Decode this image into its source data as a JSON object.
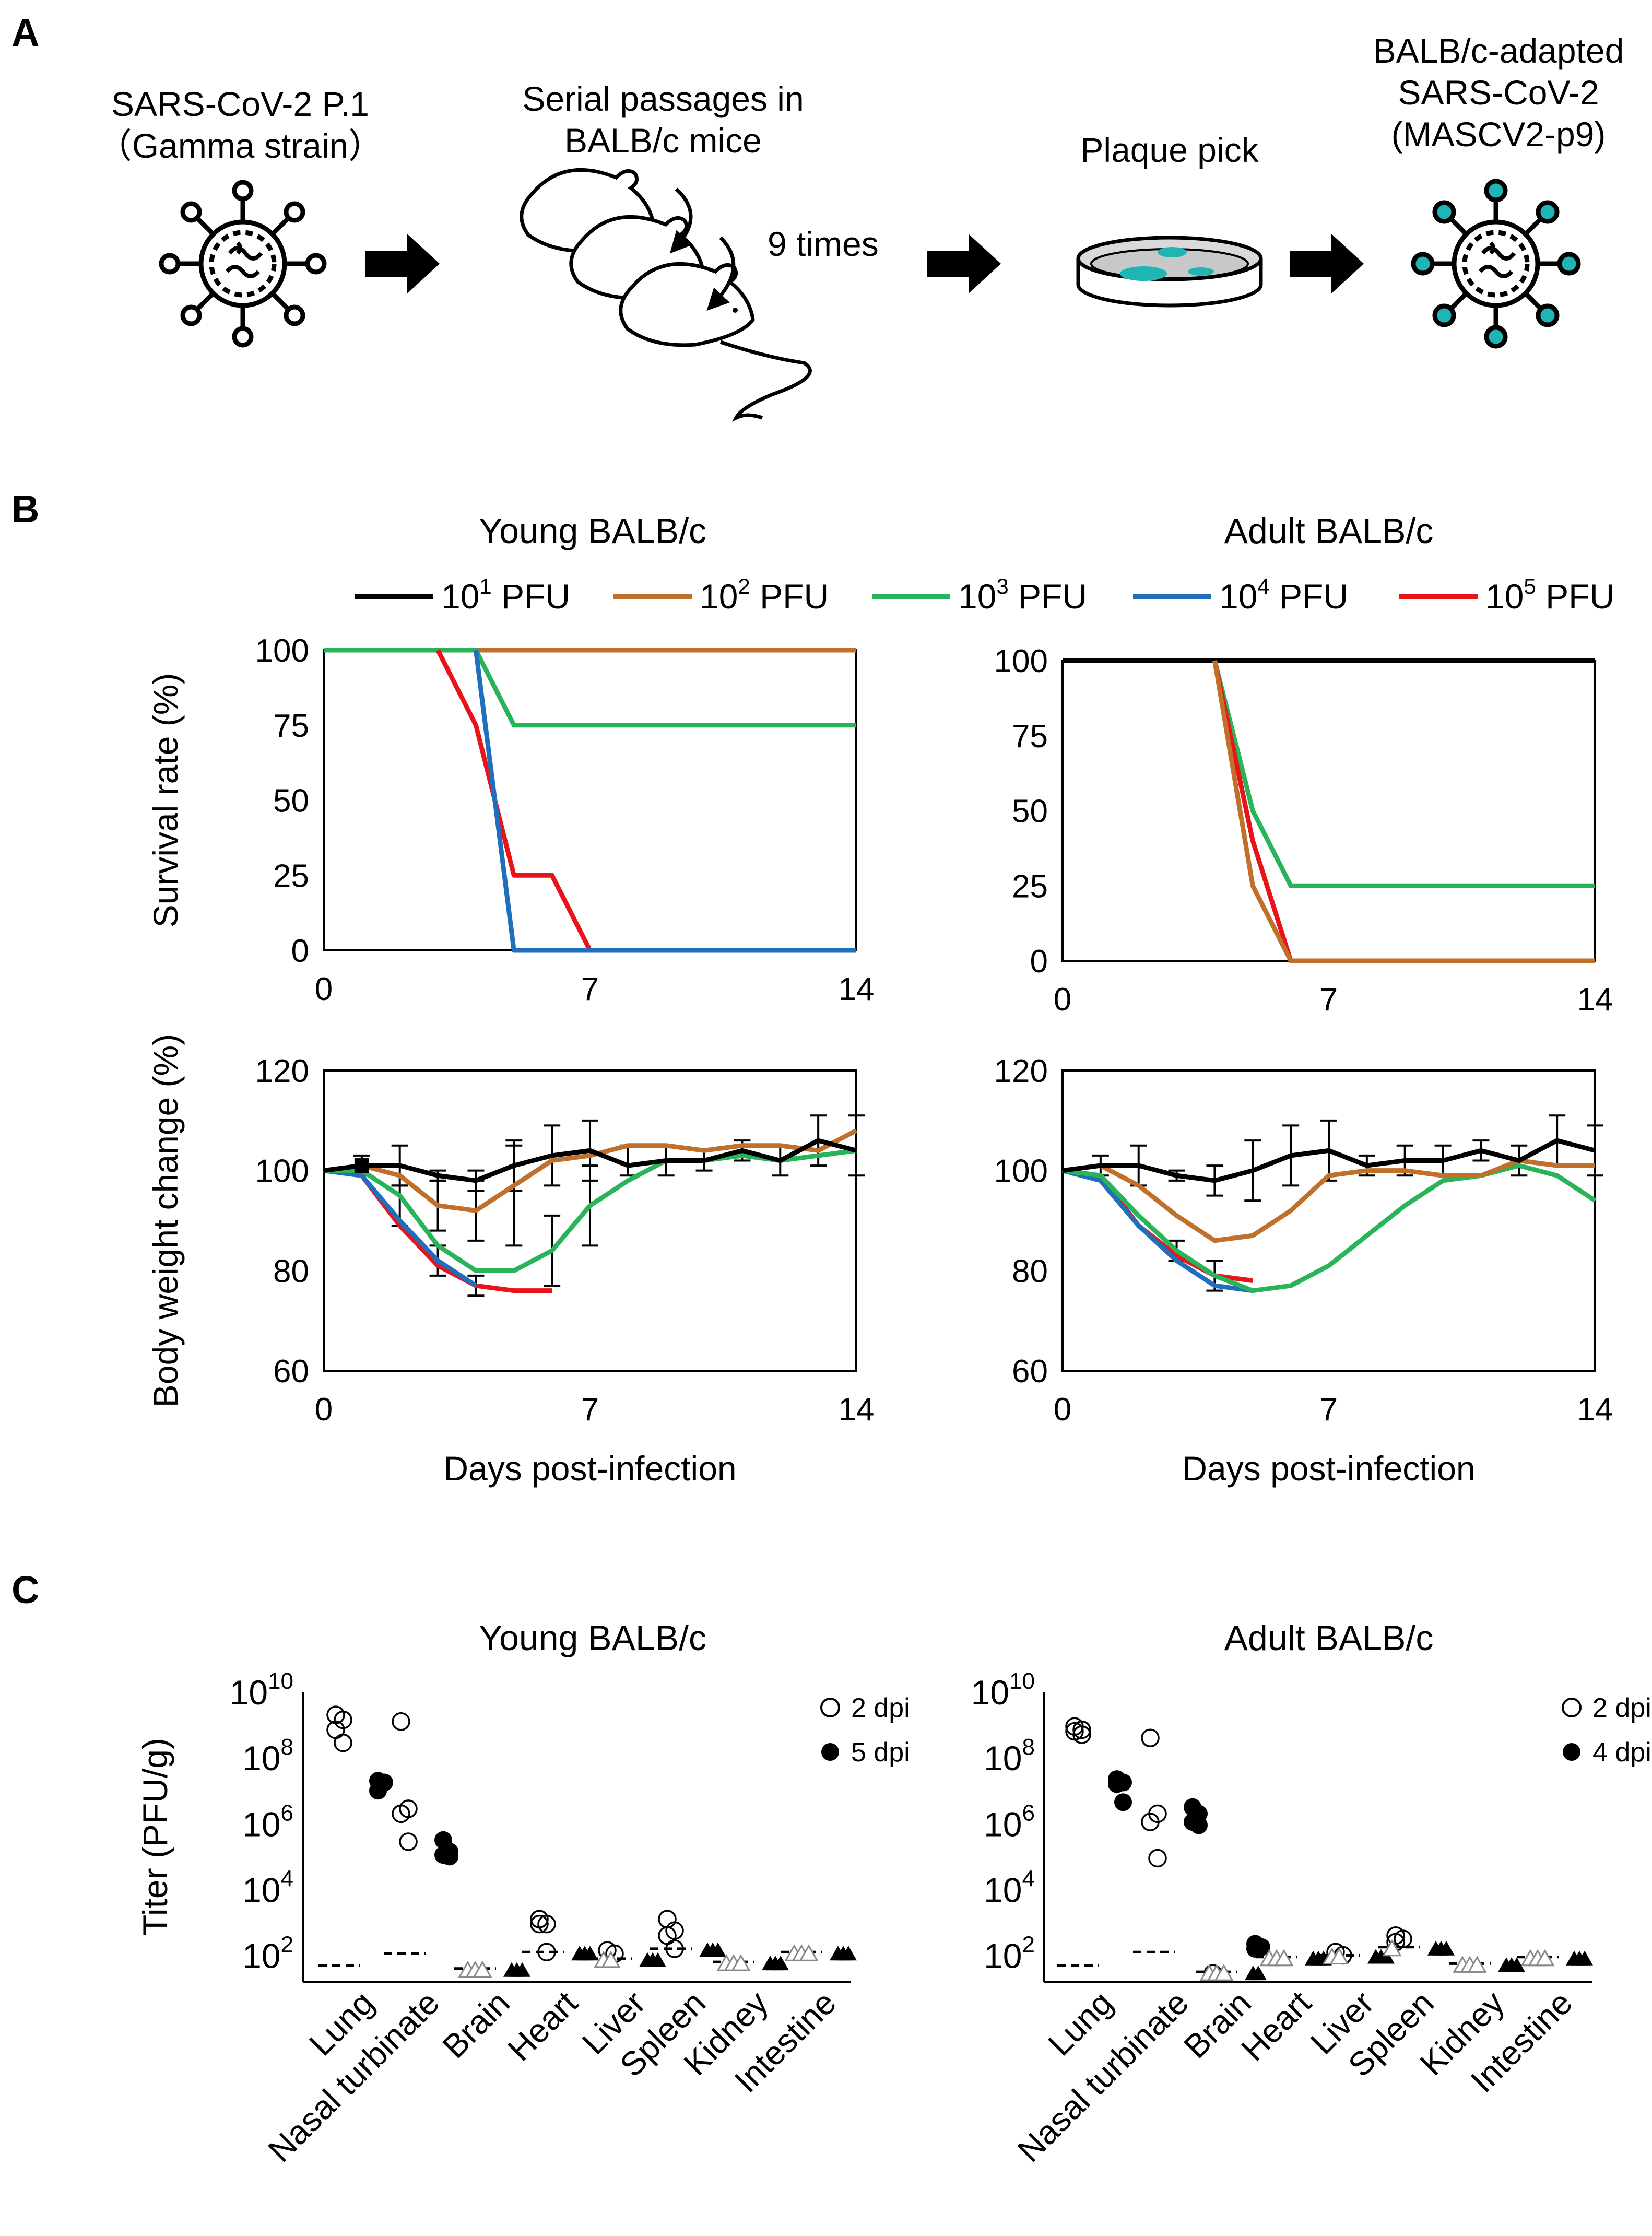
{
  "panels": {
    "a": "A",
    "b": "B",
    "c": "C"
  },
  "panel_a": {
    "virus_label_1": "SARS-CoV-2 P.1",
    "virus_label_2": "（Gamma strain）",
    "passage_label_1": "Serial passages in",
    "passage_label_2": "BALB/c mice",
    "times_label": "9 times",
    "plaque_label": "Plaque pick",
    "adapted_label_1": "BALB/c-adapted",
    "adapted_label_2": "SARS-CoV-2",
    "adapted_label_3": "(MASCV2-p9)",
    "colors": {
      "virus_outline": "#000000",
      "adapted_virus": "#1fb5b5",
      "arrow": "#000000"
    }
  },
  "legend": {
    "items": [
      {
        "base": "10",
        "exp": "1",
        "unit": " PFU",
        "color": "#000000"
      },
      {
        "base": "10",
        "exp": "2",
        "unit": " PFU",
        "color": "#c0702a"
      },
      {
        "base": "10",
        "exp": "3",
        "unit": " PFU",
        "color": "#2ab45a"
      },
      {
        "base": "10",
        "exp": "4",
        "unit": " PFU",
        "color": "#1f6fbd"
      },
      {
        "base": "10",
        "exp": "5",
        "unit": " PFU",
        "color": "#e8141a"
      }
    ]
  },
  "chart_data": [
    {
      "id": "survival-young",
      "type": "line",
      "title": "Young BALB/c",
      "xlabel": "",
      "ylabel": "Survival rate (%)",
      "xlim": [
        0,
        14
      ],
      "ylim": [
        0,
        100
      ],
      "xticks": [
        0,
        7,
        14
      ],
      "yticks": [
        0,
        25,
        50,
        75,
        100
      ],
      "series": [
        {
          "name": "10^1 PFU",
          "color": "#000000",
          "x": [
            0,
            14
          ],
          "y": [
            100,
            100
          ]
        },
        {
          "name": "10^2 PFU",
          "color": "#c0702a",
          "x": [
            0,
            14
          ],
          "y": [
            100,
            100
          ]
        },
        {
          "name": "10^3 PFU",
          "color": "#2ab45a",
          "x": [
            0,
            4,
            5,
            14
          ],
          "y": [
            100,
            100,
            75,
            75
          ]
        },
        {
          "name": "10^5 PFU",
          "color": "#e8141a",
          "x": [
            3,
            4,
            5,
            6,
            7,
            14
          ],
          "y": [
            100,
            75,
            25,
            25,
            0,
            0
          ]
        },
        {
          "name": "10^4 PFU",
          "color": "#1f6fbd",
          "x": [
            4,
            5,
            14
          ],
          "y": [
            100,
            0,
            0
          ]
        }
      ]
    },
    {
      "id": "survival-adult",
      "type": "line",
      "title": "Adult BALB/c",
      "xlabel": "",
      "ylabel": "",
      "xlim": [
        0,
        14
      ],
      "ylim": [
        0,
        100
      ],
      "xticks": [
        0,
        7,
        14
      ],
      "yticks": [
        0,
        25,
        50,
        75,
        100
      ],
      "series": [
        {
          "name": "10^1 PFU",
          "color": "#000000",
          "x": [
            0,
            14
          ],
          "y": [
            100,
            100
          ]
        },
        {
          "name": "10^3 PFU",
          "color": "#2ab45a",
          "x": [
            4,
            5,
            6,
            14
          ],
          "y": [
            100,
            50,
            25,
            25
          ]
        },
        {
          "name": "10^5 PFU",
          "color": "#e8141a",
          "x": [
            4,
            5,
            6
          ],
          "y": [
            100,
            40,
            0
          ]
        },
        {
          "name": "10^2 PFU",
          "color": "#c0702a",
          "x": [
            4,
            5,
            6,
            14
          ],
          "y": [
            100,
            25,
            0,
            0
          ]
        }
      ]
    },
    {
      "id": "weight-young",
      "type": "line",
      "title": "",
      "xlabel": "Days post-infection",
      "ylabel": "Body weight change (%)",
      "xlim": [
        0,
        14
      ],
      "ylim": [
        60,
        120
      ],
      "xticks": [
        0,
        7,
        14
      ],
      "yticks": [
        60,
        80,
        100,
        120
      ],
      "series": [
        {
          "name": "10^5 PFU",
          "color": "#e8141a",
          "x": [
            0,
            1,
            2,
            3,
            4,
            5,
            6
          ],
          "y": [
            100,
            99,
            89,
            81,
            77,
            76,
            76
          ]
        },
        {
          "name": "10^4 PFU",
          "color": "#1f6fbd",
          "x": [
            0,
            1,
            2,
            3,
            4
          ],
          "y": [
            100,
            99,
            90,
            82,
            77
          ]
        },
        {
          "name": "10^3 PFU",
          "color": "#2ab45a",
          "x": [
            0,
            1,
            2,
            3,
            4,
            5,
            6,
            7,
            8,
            9,
            10,
            11,
            12,
            13,
            14
          ],
          "y": [
            100,
            100,
            95,
            85,
            80,
            80,
            84,
            93,
            98,
            102,
            102,
            103,
            102,
            103,
            104
          ]
        },
        {
          "name": "10^2 PFU",
          "color": "#c0702a",
          "x": [
            0,
            1,
            2,
            3,
            4,
            5,
            6,
            7,
            8,
            9,
            10,
            11,
            12,
            13,
            14
          ],
          "y": [
            100,
            101,
            99,
            93,
            92,
            97,
            102,
            103,
            105,
            105,
            104,
            105,
            105,
            104,
            108
          ]
        },
        {
          "name": "10^1 PFU",
          "color": "#000000",
          "x": [
            0,
            1,
            2,
            3,
            4,
            5,
            6,
            7,
            8,
            9,
            10,
            11,
            12,
            13,
            14
          ],
          "y": [
            100,
            101,
            101,
            99,
            98,
            101,
            103,
            104,
            101,
            102,
            102,
            104,
            102,
            106,
            104
          ]
        }
      ],
      "error_bars": [
        {
          "x": 1,
          "y": 101,
          "err": 2
        },
        {
          "x": 2,
          "y": 101,
          "err": 4
        },
        {
          "x": 2,
          "y": 93,
          "err": 4
        },
        {
          "x": 3,
          "y": 99,
          "err": 1
        },
        {
          "x": 3,
          "y": 93,
          "err": 5
        },
        {
          "x": 3,
          "y": 82,
          "err": 3
        },
        {
          "x": 4,
          "y": 98,
          "err": 2
        },
        {
          "x": 4,
          "y": 92,
          "err": 6
        },
        {
          "x": 4,
          "y": 77,
          "err": 2
        },
        {
          "x": 5,
          "y": 101,
          "err": 5
        },
        {
          "x": 5,
          "y": 95,
          "err": 10
        },
        {
          "x": 6,
          "y": 103,
          "err": 6
        },
        {
          "x": 6,
          "y": 84,
          "err": 7
        },
        {
          "x": 7,
          "y": 104,
          "err": 6
        },
        {
          "x": 7,
          "y": 93,
          "err": 8
        },
        {
          "x": 8,
          "y": 102,
          "err": 3
        },
        {
          "x": 9,
          "y": 102,
          "err": 3
        },
        {
          "x": 10,
          "y": 102,
          "err": 2
        },
        {
          "x": 11,
          "y": 104,
          "err": 2
        },
        {
          "x": 12,
          "y": 102,
          "err": 3
        },
        {
          "x": 13,
          "y": 106,
          "err": 5
        },
        {
          "x": 14,
          "y": 105,
          "err": 6
        }
      ]
    },
    {
      "id": "weight-adult",
      "type": "line",
      "title": "",
      "xlabel": "Days post-infection",
      "ylabel": "",
      "xlim": [
        0,
        14
      ],
      "ylim": [
        60,
        120
      ],
      "xticks": [
        0,
        7,
        14
      ],
      "yticks": [
        60,
        80,
        100,
        120
      ],
      "series": [
        {
          "name": "10^5 PFU",
          "color": "#e8141a",
          "x": [
            0,
            1,
            2,
            3,
            4,
            5
          ],
          "y": [
            100,
            99,
            89,
            83,
            79,
            78
          ]
        },
        {
          "name": "10^4 PFU",
          "color": "#1f6fbd",
          "x": [
            0,
            1,
            2,
            3,
            4,
            5
          ],
          "y": [
            100,
            98,
            89,
            82,
            77,
            76
          ]
        },
        {
          "name": "10^3 PFU",
          "color": "#2ab45a",
          "x": [
            0,
            1,
            2,
            3,
            4,
            5,
            6,
            7,
            8,
            9,
            10,
            11,
            12,
            13,
            14
          ],
          "y": [
            100,
            99,
            91,
            84,
            79,
            76,
            77,
            81,
            87,
            93,
            98,
            99,
            101,
            99,
            94
          ]
        },
        {
          "name": "10^2 PFU",
          "color": "#c0702a",
          "x": [
            0,
            1,
            2,
            3,
            4,
            5,
            6,
            7,
            8,
            9,
            10,
            11,
            12,
            13,
            14
          ],
          "y": [
            100,
            101,
            97,
            91,
            86,
            87,
            92,
            99,
            100,
            100,
            99,
            99,
            102,
            101,
            101
          ]
        },
        {
          "name": "10^1 PFU",
          "color": "#000000",
          "x": [
            0,
            1,
            2,
            3,
            4,
            5,
            6,
            7,
            8,
            9,
            10,
            11,
            12,
            13,
            14
          ],
          "y": [
            100,
            101,
            101,
            99,
            98,
            100,
            103,
            104,
            101,
            102,
            102,
            104,
            102,
            106,
            104
          ]
        }
      ],
      "error_bars": [
        {
          "x": 1,
          "y": 101,
          "err": 2
        },
        {
          "x": 2,
          "y": 101,
          "err": 4
        },
        {
          "x": 3,
          "y": 99,
          "err": 1
        },
        {
          "x": 3,
          "y": 84,
          "err": 2
        },
        {
          "x": 4,
          "y": 98,
          "err": 3
        },
        {
          "x": 4,
          "y": 79,
          "err": 3
        },
        {
          "x": 5,
          "y": 100,
          "err": 6
        },
        {
          "x": 6,
          "y": 103,
          "err": 6
        },
        {
          "x": 7,
          "y": 104,
          "err": 6
        },
        {
          "x": 8,
          "y": 101,
          "err": 2
        },
        {
          "x": 9,
          "y": 102,
          "err": 3
        },
        {
          "x": 10,
          "y": 102,
          "err": 3
        },
        {
          "x": 11,
          "y": 104,
          "err": 2
        },
        {
          "x": 12,
          "y": 102,
          "err": 3
        },
        {
          "x": 13,
          "y": 106,
          "err": 5
        },
        {
          "x": 14,
          "y": 104,
          "err": 5
        }
      ]
    },
    {
      "id": "titer-young",
      "type": "scatter",
      "title": "Young BALB/c",
      "ylabel": "Titer (PFU/g)",
      "yscale": "log",
      "ylim_exp": [
        1.2,
        10
      ],
      "yticks_exp": [
        2,
        4,
        6,
        8,
        10
      ],
      "categories": [
        "Lung",
        "Nasal turbinate",
        "Brain",
        "Heart",
        "Liver",
        "Spleen",
        "Kidney",
        "Intestine"
      ],
      "legend": [
        {
          "label": "2 dpi",
          "marker": "open-circle"
        },
        {
          "label": "5 dpi",
          "marker": "filled-circle"
        }
      ],
      "detection_limits": [
        1.7,
        2.05,
        1.6,
        2.1,
        1.9,
        2.2,
        1.8,
        2.1
      ],
      "day_a_values": [
        [
          9.3,
          9.15,
          8.85,
          8.45
        ],
        [
          9.1,
          6.45,
          6.3,
          5.45
        ],
        [],
        [
          3.1,
          2.95,
          2.95,
          2.1
        ],
        [
          2.15,
          2.05
        ],
        [
          3.1,
          2.75,
          2.6,
          2.2
        ],
        [],
        []
      ],
      "day_a_below_limit": [
        0,
        0,
        3,
        0,
        2,
        0,
        3,
        3
      ],
      "day_b_values": [
        [
          7.3,
          7.25,
          7.0
        ],
        [
          5.5,
          5.15,
          5.05,
          5.0
        ],
        [],
        [],
        [],
        [],
        [],
        []
      ],
      "day_b_below_limit": [
        0,
        0,
        3,
        3,
        3,
        3,
        3,
        3
      ]
    },
    {
      "id": "titer-adult",
      "type": "scatter",
      "title": "Adult BALB/c",
      "ylabel": "",
      "yscale": "log",
      "ylim_exp": [
        1.2,
        10
      ],
      "yticks_exp": [
        2,
        4,
        6,
        8,
        10
      ],
      "categories": [
        "Lung",
        "Nasal turbinate",
        "Brain",
        "Heart",
        "Liver",
        "Spleen",
        "Kidney",
        "Intestine"
      ],
      "legend": [
        {
          "label": "2 dpi",
          "marker": "open-circle"
        },
        {
          "label": "4 dpi",
          "marker": "filled-circle"
        }
      ],
      "detection_limits": [
        1.7,
        2.1,
        1.5,
        1.95,
        2.0,
        2.25,
        1.75,
        1.95
      ],
      "day_a_values": [
        [
          8.95,
          8.85,
          8.8,
          8.7
        ],
        [
          8.6,
          6.3,
          6.05,
          4.95
        ],
        [
          1.45
        ],
        [],
        [
          2.1,
          2.0
        ],
        [
          2.6,
          2.5,
          2.4
        ],
        [],
        []
      ],
      "day_a_below_limit": [
        0,
        0,
        3,
        3,
        2,
        1,
        3,
        3
      ],
      "day_b_values": [
        [
          7.35,
          7.25,
          7.2,
          6.65
        ],
        [
          6.5,
          6.3,
          6.05,
          5.95
        ],
        [
          2.35,
          2.25,
          2.2
        ],
        [],
        [],
        [],
        [],
        []
      ],
      "day_b_below_limit": [
        0,
        0,
        2,
        3,
        3,
        3,
        3,
        3
      ]
    }
  ]
}
